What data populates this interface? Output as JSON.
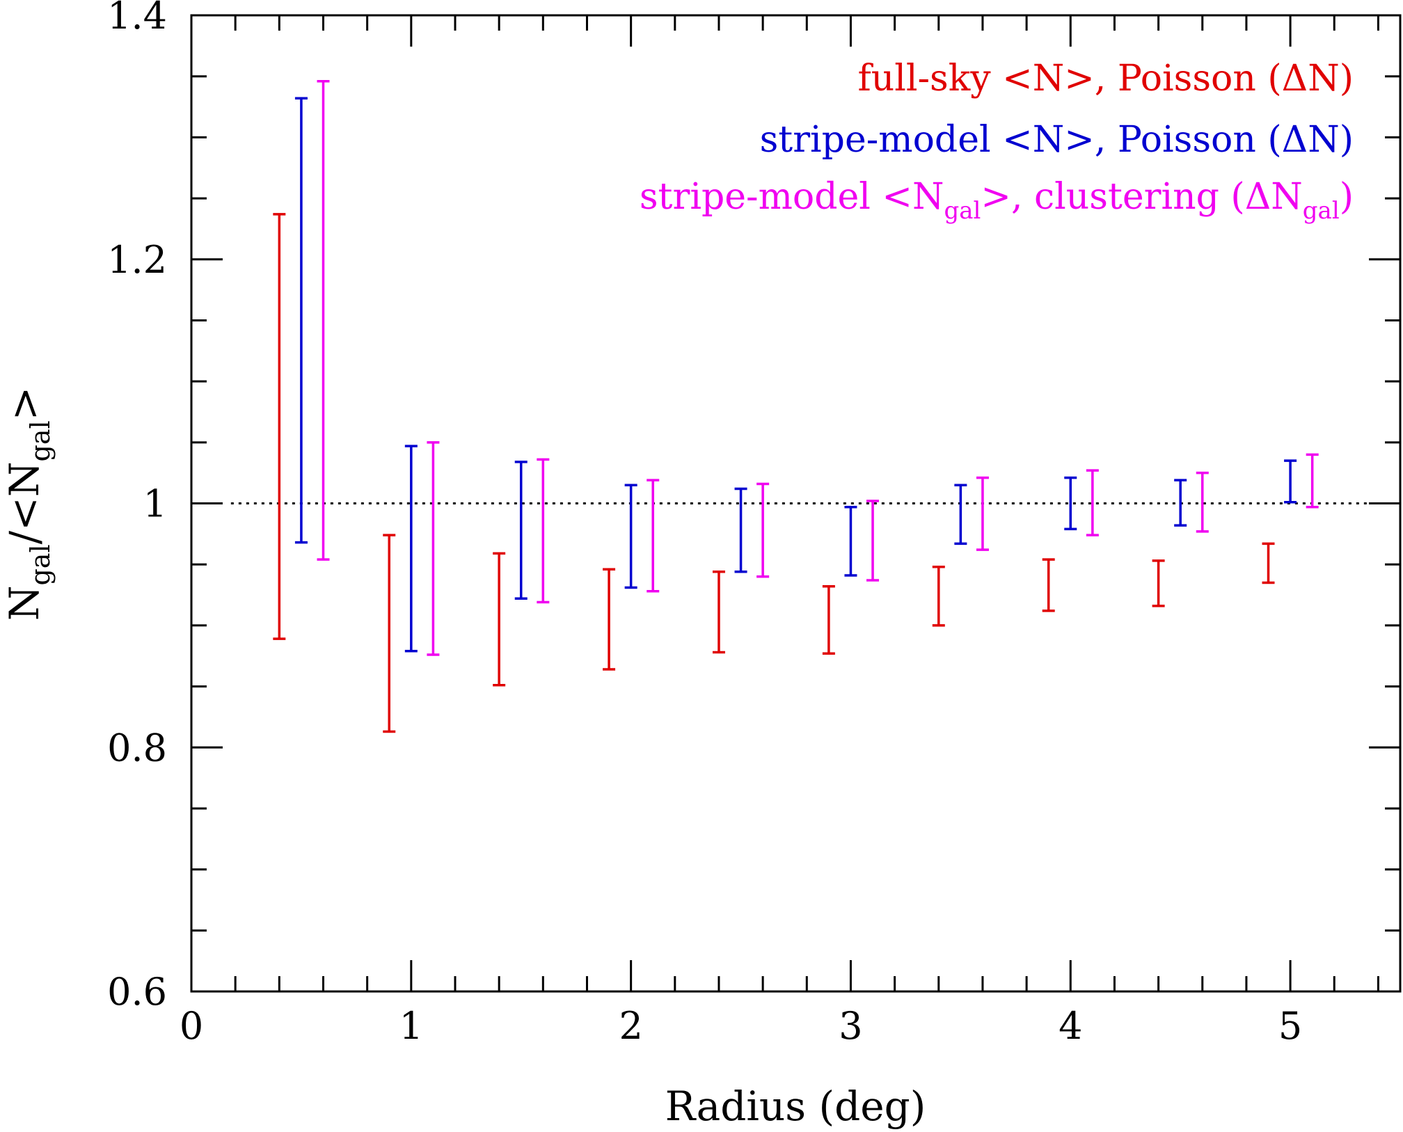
{
  "chart_data": {
    "type": "errorbar",
    "xlabel": "Radius (deg)",
    "ylabel_main": "N",
    "ylabel_sub": "gal",
    "ylabel_mid": "/<N",
    "ylabel_sub2": "gal",
    "ylabel_end": ">",
    "xlim": [
      0,
      5.5
    ],
    "ylim": [
      0.6,
      1.4
    ],
    "x_ticks": [
      0,
      1,
      2,
      3,
      4,
      5
    ],
    "x_tick_labels": [
      "0",
      "1",
      "2",
      "3",
      "4",
      "5"
    ],
    "y_ticks": [
      0.6,
      0.8,
      1.0,
      1.2,
      1.4
    ],
    "y_tick_labels": [
      "0.6",
      "0.8",
      "1",
      "1.2",
      "1.4"
    ],
    "reference_line": {
      "y": 1.0,
      "style": "dotted",
      "xmin": 0.18,
      "xmax": 5.4
    },
    "legend": [
      {
        "text": "full-sky <N>, Poisson (ΔN)",
        "color": "#e00000"
      },
      {
        "text": "stripe-model <N>, Poisson (ΔN)",
        "color": "#0000d0"
      },
      {
        "text_parts": [
          "stripe-model <N",
          "gal",
          ">, clustering (ΔN",
          "gal",
          ")"
        ],
        "color": "#f000f0"
      }
    ],
    "series": [
      {
        "name": "full-sky <N>, Poisson (ΔN)",
        "color": "#e00000",
        "points": [
          {
            "x": 0.4,
            "low": 0.889,
            "high": 1.237
          },
          {
            "x": 0.9,
            "low": 0.813,
            "high": 0.974
          },
          {
            "x": 1.4,
            "low": 0.851,
            "high": 0.959
          },
          {
            "x": 1.9,
            "low": 0.864,
            "high": 0.946
          },
          {
            "x": 2.4,
            "low": 0.878,
            "high": 0.944
          },
          {
            "x": 2.9,
            "low": 0.877,
            "high": 0.932
          },
          {
            "x": 3.4,
            "low": 0.9,
            "high": 0.948
          },
          {
            "x": 3.9,
            "low": 0.912,
            "high": 0.954
          },
          {
            "x": 4.4,
            "low": 0.916,
            "high": 0.953
          },
          {
            "x": 4.9,
            "low": 0.935,
            "high": 0.967
          }
        ]
      },
      {
        "name": "stripe-model <N>, Poisson (ΔN)",
        "color": "#0000d0",
        "points": [
          {
            "x": 0.5,
            "low": 0.968,
            "high": 1.332
          },
          {
            "x": 1.0,
            "low": 0.879,
            "high": 1.047
          },
          {
            "x": 1.5,
            "low": 0.922,
            "high": 1.034
          },
          {
            "x": 2.0,
            "low": 0.931,
            "high": 1.015
          },
          {
            "x": 2.5,
            "low": 0.944,
            "high": 1.012
          },
          {
            "x": 3.0,
            "low": 0.941,
            "high": 0.997
          },
          {
            "x": 3.5,
            "low": 0.967,
            "high": 1.015
          },
          {
            "x": 4.0,
            "low": 0.979,
            "high": 1.021
          },
          {
            "x": 4.5,
            "low": 0.982,
            "high": 1.019
          },
          {
            "x": 5.0,
            "low": 1.001,
            "high": 1.035
          }
        ]
      },
      {
        "name": "stripe-model <Ngal>, clustering (ΔNgal)",
        "color": "#f000f0",
        "points": [
          {
            "x": 0.6,
            "low": 0.954,
            "high": 1.346
          },
          {
            "x": 1.1,
            "low": 0.876,
            "high": 1.05
          },
          {
            "x": 1.6,
            "low": 0.919,
            "high": 1.036
          },
          {
            "x": 2.1,
            "low": 0.928,
            "high": 1.019
          },
          {
            "x": 2.6,
            "low": 0.94,
            "high": 1.016
          },
          {
            "x": 3.1,
            "low": 0.937,
            "high": 1.002
          },
          {
            "x": 3.6,
            "low": 0.962,
            "high": 1.021
          },
          {
            "x": 4.1,
            "low": 0.974,
            "high": 1.027
          },
          {
            "x": 4.6,
            "low": 0.977,
            "high": 1.025
          },
          {
            "x": 5.1,
            "low": 0.997,
            "high": 1.04
          }
        ]
      }
    ]
  }
}
